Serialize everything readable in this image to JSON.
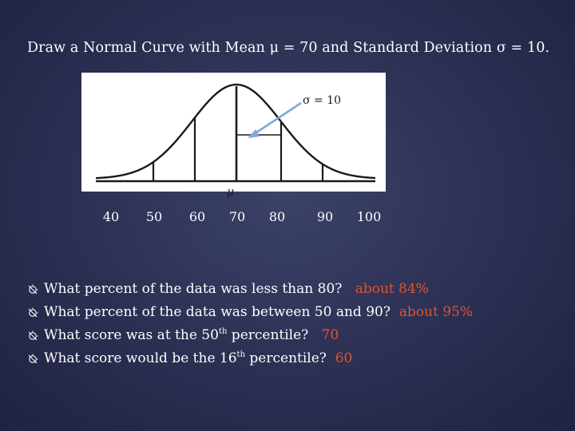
{
  "title": "Draw a Normal Curve with Mean μ = 70 and Standard Deviation σ = 10.",
  "diagram": {
    "sigma_label": "σ = 10",
    "mu_label": "μ",
    "x_ticks": [
      "40",
      "50",
      "60",
      "70",
      "80",
      "90",
      "100"
    ],
    "colors": {
      "curve": "#1a1a1a",
      "arrow": "#7ea9d8",
      "panel": "#ffffff"
    }
  },
  "questions": [
    {
      "text": "What percent of the data was less than 80?",
      "answer": "about 84%"
    },
    {
      "text": "What percent of the data was between 50 and 90?",
      "answer": "about 95%"
    },
    {
      "text_before": "What score was at the 50",
      "sup": "th",
      "text_after": " percentile?",
      "answer": "70"
    },
    {
      "text_before": "What score would be the 16",
      "sup": "th",
      "text_after": " percentile?",
      "answer": "60"
    }
  ],
  "bullet_icon": "sun-circle-icon",
  "colors": {
    "background": "#2b2f52",
    "text": "#ffffff",
    "answer": "#e0542e"
  }
}
